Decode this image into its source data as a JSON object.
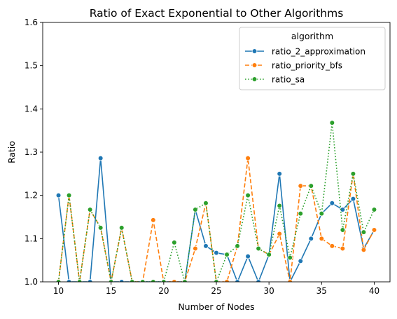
{
  "chart_data": {
    "type": "line",
    "title": "Ratio of Exact Exponential to Other Algorithms",
    "xlabel": "Number of Nodes",
    "ylabel": "Ratio",
    "xlim": [
      8.5,
      41.5
    ],
    "ylim": [
      1.0,
      1.6
    ],
    "xticks": [
      10,
      15,
      20,
      25,
      30,
      35,
      40
    ],
    "yticks": [
      1.0,
      1.1,
      1.2,
      1.3,
      1.4,
      1.5,
      1.6
    ],
    "x": [
      10,
      11,
      12,
      13,
      14,
      15,
      16,
      17,
      18,
      19,
      20,
      21,
      22,
      23,
      24,
      25,
      26,
      27,
      28,
      29,
      30,
      31,
      32,
      33,
      34,
      35,
      36,
      37,
      38,
      39,
      40
    ],
    "legend": {
      "title": "algorithm",
      "placement": "top-right"
    },
    "grid": false,
    "series": [
      {
        "name": "ratio_2_approximation",
        "color": "#1f77b4",
        "dash": "solid",
        "values": [
          1.2,
          1.0,
          1.0,
          1.0,
          1.286,
          1.0,
          1.0,
          1.0,
          1.0,
          1.0,
          1.0,
          1.0,
          1.0,
          1.167,
          1.083,
          1.067,
          1.063,
          1.0,
          1.059,
          1.0,
          1.063,
          1.25,
          1.0,
          1.048,
          1.1,
          1.158,
          1.182,
          1.167,
          1.192,
          1.077,
          1.12
        ]
      },
      {
        "name": "ratio_priority_bfs",
        "color": "#ff7f0e",
        "dash": "dashed",
        "values": [
          1.0,
          1.2,
          1.0,
          1.167,
          1.125,
          1.0,
          1.125,
          1.0,
          1.0,
          1.143,
          1.0,
          1.0,
          1.0,
          1.077,
          1.182,
          1.0,
          1.0,
          1.083,
          1.286,
          1.077,
          1.063,
          1.111,
          1.0,
          1.222,
          1.222,
          1.1,
          1.083,
          1.077,
          1.25,
          1.074,
          1.12
        ]
      },
      {
        "name": "ratio_sa",
        "color": "#2ca02c",
        "dash": "dotted",
        "values": [
          1.0,
          1.2,
          1.0,
          1.167,
          1.125,
          1.0,
          1.125,
          1.0,
          1.0,
          1.0,
          1.0,
          1.091,
          1.0,
          1.167,
          1.182,
          1.0,
          1.063,
          1.083,
          1.2,
          1.077,
          1.063,
          1.176,
          1.056,
          1.158,
          1.222,
          1.158,
          1.368,
          1.12,
          1.25,
          1.115,
          1.167
        ]
      }
    ]
  }
}
